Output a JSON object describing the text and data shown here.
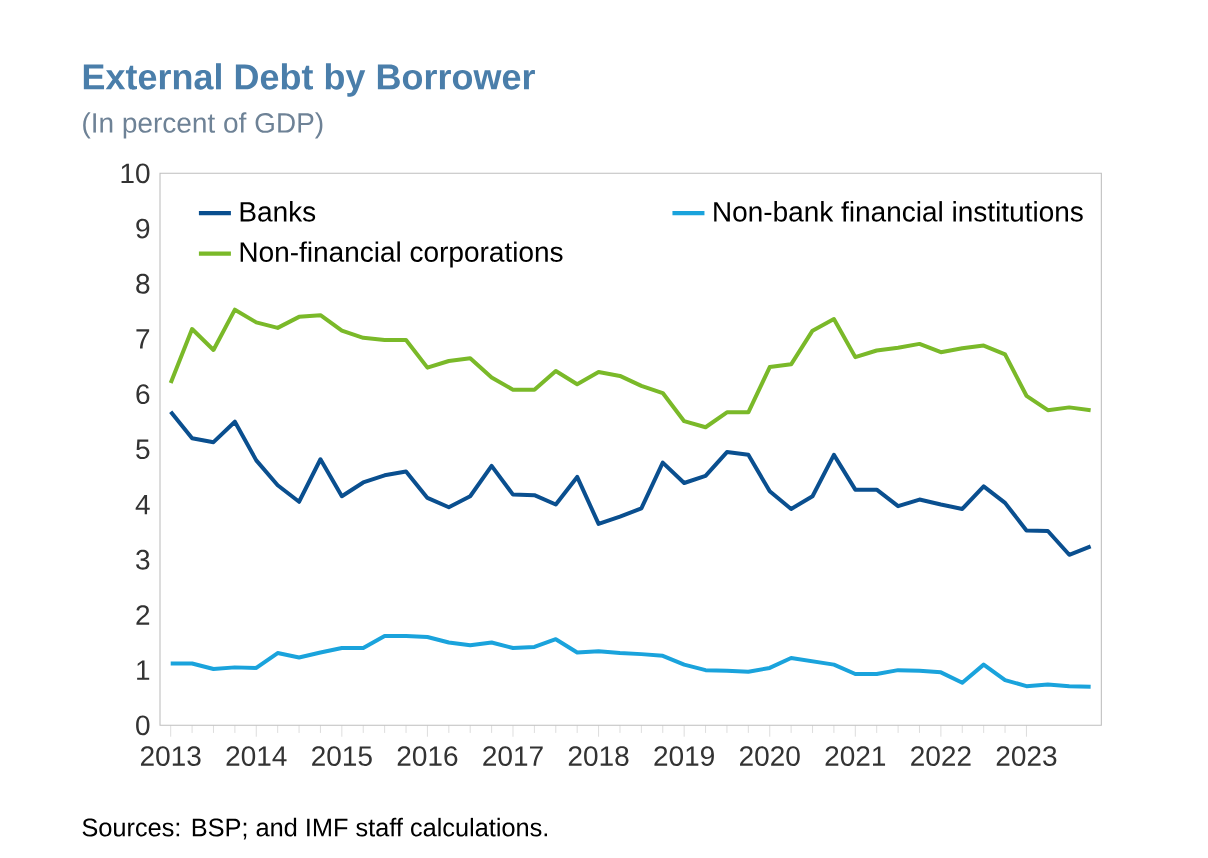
{
  "chart_data": {
    "type": "line",
    "title": "External Debt by Borrower",
    "subtitle": "(In percent of GDP)",
    "x": [
      2013,
      2013.25,
      2013.5,
      2013.75,
      2014,
      2014.25,
      2014.5,
      2014.75,
      2015,
      2015.25,
      2015.5,
      2015.75,
      2016,
      2016.25,
      2016.5,
      2016.75,
      2017,
      2017.25,
      2017.5,
      2017.75,
      2018,
      2018.25,
      2018.5,
      2018.75,
      2019,
      2019.25,
      2019.5,
      2019.75,
      2020,
      2020.25,
      2020.5,
      2020.75,
      2021,
      2021.25,
      2021.5,
      2021.75,
      2022,
      2022.25,
      2022.5,
      2022.75,
      2023,
      2023.25,
      2023.5,
      2023.75
    ],
    "series": [
      {
        "name": "Banks",
        "color": "#0a4f8f",
        "values": [
          5.68,
          5.2,
          5.13,
          5.5,
          4.8,
          4.35,
          4.05,
          4.82,
          4.15,
          4.4,
          4.53,
          4.6,
          4.12,
          3.95,
          4.15,
          4.7,
          4.18,
          4.17,
          4.0,
          4.5,
          3.65,
          3.78,
          3.93,
          4.76,
          4.39,
          4.52,
          4.95,
          4.9,
          4.24,
          3.92,
          4.15,
          4.9,
          4.27,
          4.27,
          3.97,
          4.09,
          4.0,
          3.92,
          4.33,
          4.03,
          3.53,
          3.52,
          3.09,
          3.24
        ]
      },
      {
        "name": "Non-bank financial institutions",
        "color": "#1aa3dc",
        "values": [
          1.12,
          1.12,
          1.02,
          1.05,
          1.04,
          1.31,
          1.23,
          1.32,
          1.4,
          1.4,
          1.62,
          1.62,
          1.6,
          1.5,
          1.45,
          1.5,
          1.4,
          1.42,
          1.56,
          1.32,
          1.34,
          1.31,
          1.29,
          1.26,
          1.1,
          1.0,
          0.99,
          0.97,
          1.04,
          1.22,
          1.16,
          1.1,
          0.93,
          0.93,
          1.0,
          0.99,
          0.96,
          0.77,
          1.1,
          0.82,
          0.71,
          0.74,
          0.71,
          0.7
        ]
      },
      {
        "name": "Non-financial corporations",
        "color": "#7ab929",
        "values": [
          6.2,
          7.18,
          6.8,
          7.53,
          7.3,
          7.2,
          7.4,
          7.43,
          7.15,
          7.02,
          6.98,
          6.98,
          6.48,
          6.6,
          6.65,
          6.3,
          6.08,
          6.08,
          6.42,
          6.18,
          6.4,
          6.33,
          6.15,
          6.02,
          5.51,
          5.4,
          5.67,
          5.67,
          6.49,
          6.54,
          7.15,
          7.36,
          6.67,
          6.79,
          6.84,
          6.91,
          6.76,
          6.83,
          6.88,
          6.72,
          5.97,
          5.71,
          5.76,
          5.71
        ]
      }
    ],
    "xlim": [
      2012.875,
      2023.875
    ],
    "ylim": [
      0,
      10
    ],
    "xticks": [
      2013,
      2014,
      2015,
      2016,
      2017,
      2018,
      2019,
      2020,
      2021,
      2022,
      2023
    ],
    "yticks": [
      0,
      1,
      2,
      3,
      4,
      5,
      6,
      7,
      8,
      9,
      10
    ],
    "grid": false,
    "legend": "top",
    "marker": "none",
    "line_style": "solid",
    "annotations": [
      "Sources: BSP; and IMF staff calculations."
    ]
  }
}
